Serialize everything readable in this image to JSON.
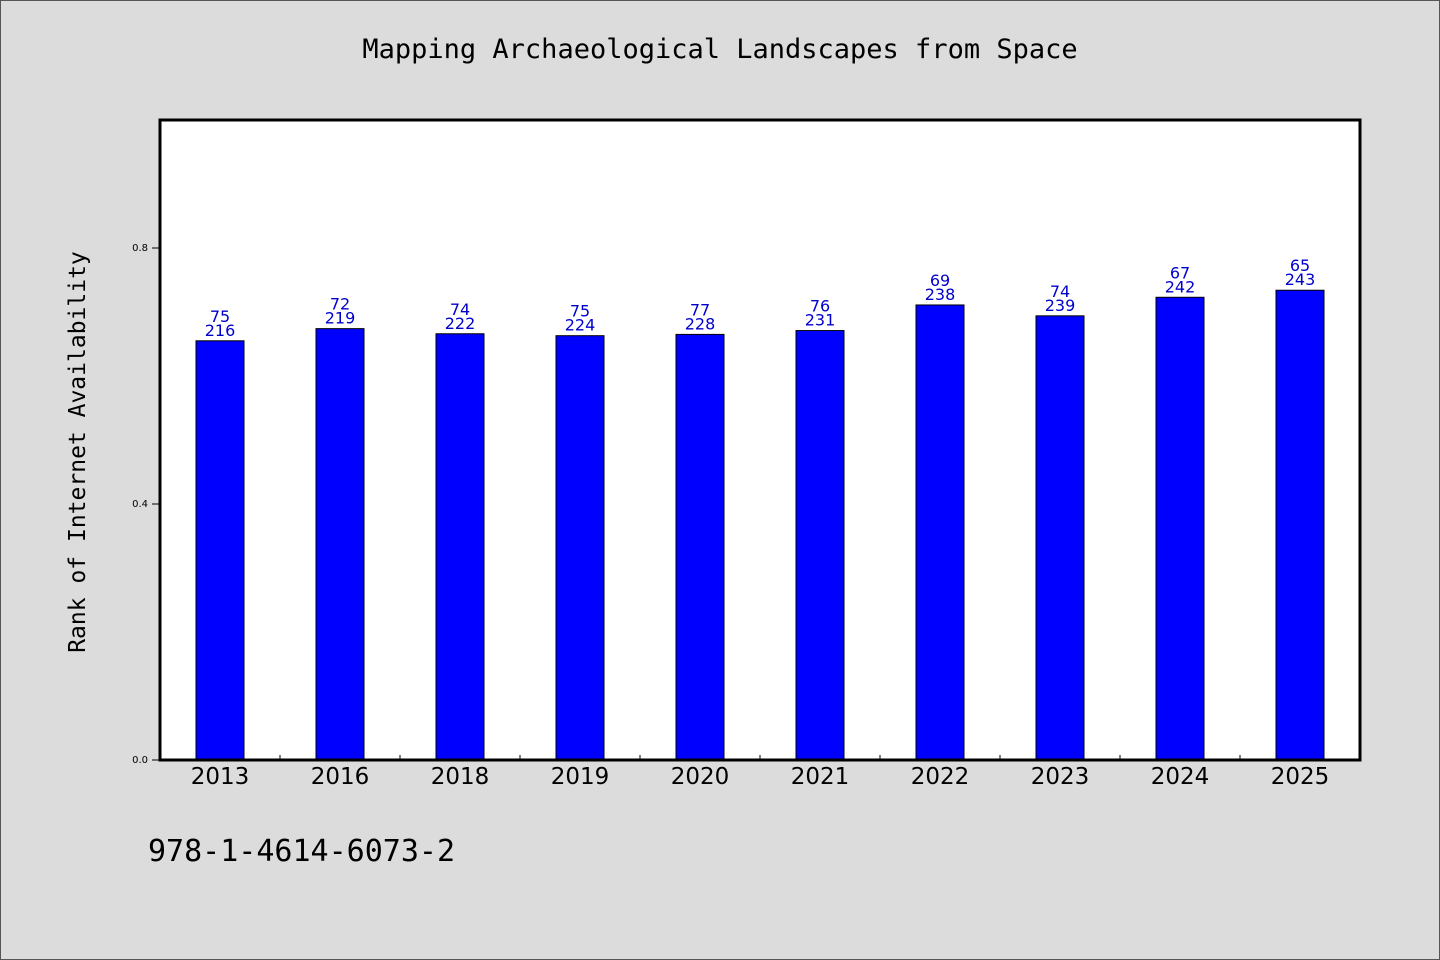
{
  "chart_data": {
    "type": "bar",
    "title": "Mapping Archaeological Landscapes from Space",
    "xlabel": "",
    "ylabel": "Rank of Internet Availability",
    "ylim": [
      0,
      1.0
    ],
    "yticks": [
      {
        "value": 0.0,
        "label": "0.0"
      },
      {
        "value": 0.4,
        "label": "0.4"
      },
      {
        "value": 0.8,
        "label": "0.8"
      }
    ],
    "grid": false,
    "bar_color": "#0000ff",
    "label_color": "#0000cc",
    "categories": [
      "2013",
      "2016",
      "2018",
      "2019",
      "2020",
      "2021",
      "2022",
      "2023",
      "2024",
      "2025"
    ],
    "values": [
      0.655,
      0.674,
      0.666,
      0.663,
      0.665,
      0.671,
      0.711,
      0.694,
      0.723,
      0.734
    ],
    "labels_top": [
      "75",
      "72",
      "74",
      "75",
      "77",
      "76",
      "69",
      "74",
      "67",
      "65"
    ],
    "labels_bottom": [
      "216",
      "219",
      "222",
      "224",
      "228",
      "231",
      "238",
      "239",
      "242",
      "243"
    ]
  },
  "footer": {
    "isbn": "978-1-4614-6073-2"
  }
}
